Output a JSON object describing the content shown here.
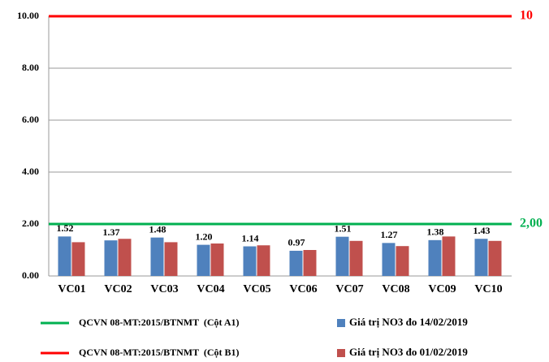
{
  "chart_data": {
    "type": "bar",
    "categories": [
      "VC01",
      "VC02",
      "VC03",
      "VC04",
      "VC05",
      "VC06",
      "VC07",
      "VC08",
      "VC09",
      "VC10"
    ],
    "series": [
      {
        "name": "Giá trị NO3 đo 14/02/2019",
        "color": "#4f81bd",
        "values": [
          1.52,
          1.37,
          1.48,
          1.2,
          1.14,
          0.97,
          1.51,
          1.27,
          1.38,
          1.43
        ],
        "value_labels": [
          "1.52",
          "1.37",
          "1.48",
          "1.20",
          "1.14",
          "0.97",
          "1.51",
          "1.27",
          "1.38",
          "1.43"
        ]
      },
      {
        "name": "Giá trị NO3 đo 01/02/2019",
        "color": "#c0504d",
        "values": [
          1.3,
          1.43,
          1.3,
          1.25,
          1.18,
          1.0,
          1.35,
          1.15,
          1.52,
          1.35
        ]
      }
    ],
    "reference_lines": [
      {
        "name": "QCVN 08-MT:2015/BTNMT  (Cột A1)",
        "value": 2,
        "label": "2,00",
        "color": "#00b050"
      },
      {
        "name": "QCVN 08-MT:2015/BTNMT  (Cột B1)",
        "value": 10,
        "label": "10",
        "color": "#ff0000"
      }
    ],
    "ylim": [
      0,
      10
    ],
    "yticks": [
      {
        "value": 0,
        "label": "0.00"
      },
      {
        "value": 2,
        "label": "2.00"
      },
      {
        "value": 4,
        "label": "4.00"
      },
      {
        "value": 6,
        "label": "6.00"
      },
      {
        "value": 8,
        "label": "8.00"
      },
      {
        "value": 10,
        "label": "10.00"
      }
    ],
    "grid": true
  }
}
